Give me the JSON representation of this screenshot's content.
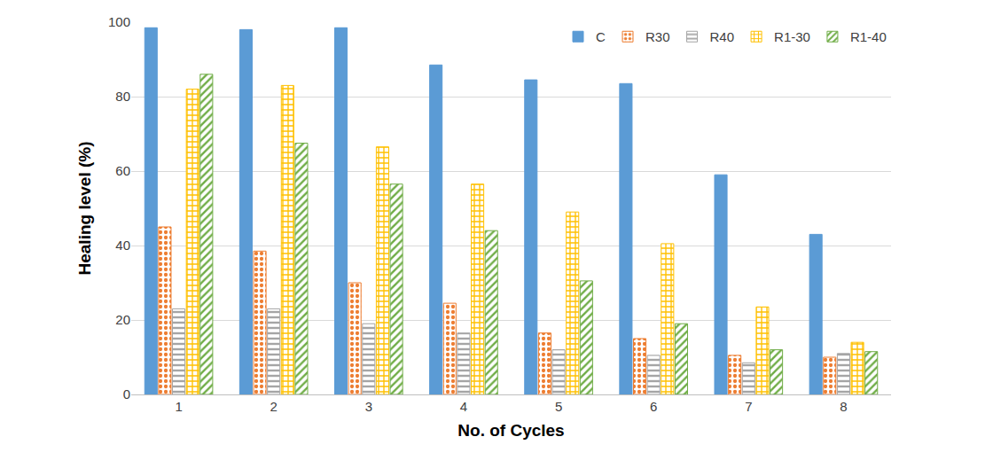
{
  "chart_data": {
    "type": "bar",
    "x_label": "No. of Cycles",
    "y_label": "Healing level (%)",
    "categories": [
      "1",
      "2",
      "3",
      "4",
      "5",
      "6",
      "7",
      "8"
    ],
    "series": [
      {
        "name": "C",
        "color": "#5b9bd5",
        "marker": "solid",
        "values": [
          98.5,
          98,
          98.5,
          88.5,
          84.5,
          83.5,
          59,
          43
        ]
      },
      {
        "name": "R30",
        "color": "#ed7d31",
        "marker": "dots",
        "values": [
          45,
          38.5,
          30,
          24.5,
          16.5,
          15,
          10.5,
          10
        ]
      },
      {
        "name": "R40",
        "color": "#a5a5a5",
        "marker": "hlines",
        "values": [
          23,
          23,
          19,
          16.5,
          12,
          10.5,
          8.5,
          11
        ]
      },
      {
        "name": "R1-30",
        "color": "#ffc000",
        "marker": "zigzag",
        "values": [
          82,
          83,
          66.5,
          56.5,
          49,
          40.5,
          23.5,
          14
        ]
      },
      {
        "name": "R1-40",
        "color": "#70ad47",
        "marker": "diagonal",
        "values": [
          86,
          67.5,
          56.5,
          44,
          30.5,
          19,
          12,
          11.5
        ]
      }
    ],
    "ylim": [
      0,
      100
    ],
    "yticks": [
      0,
      20,
      40,
      60,
      80,
      100
    ],
    "grid": true,
    "legend": "top-right"
  }
}
